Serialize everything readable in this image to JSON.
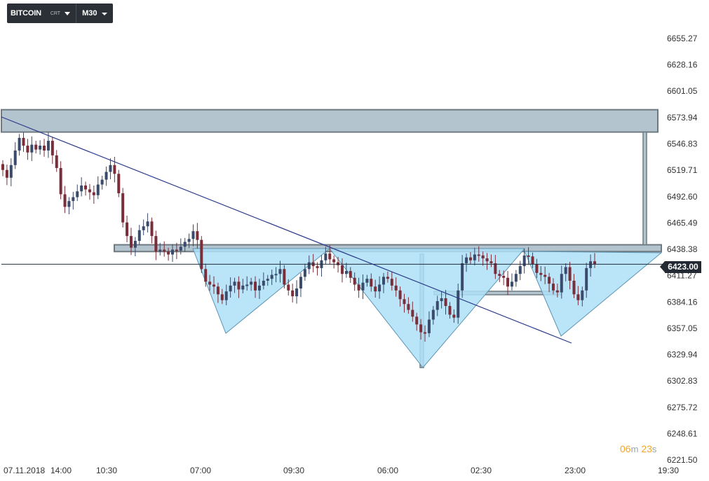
{
  "toolbar": {
    "symbol": "BITCOIN",
    "symbol_sub": "CRT",
    "timeframe": "M30"
  },
  "countdown": {
    "minutes": "06",
    "minutes_unit": "m",
    "seconds": "23",
    "seconds_unit": "s"
  },
  "colors": {
    "bull": "#3a4a6b",
    "bear": "#7a2e3a",
    "zone_fill": "#b4c4ce",
    "zone_stroke": "#6f7a80",
    "pattern_fill": "#aee0f7",
    "pattern_stroke": "#5d95b4",
    "trendline": "#2a3a8a",
    "price_label_bg": "#232a33"
  },
  "chart_data": {
    "type": "candlestick",
    "title": "",
    "xlabel": "",
    "ylabel": "",
    "ylim": [
      6221.5,
      6655.27
    ],
    "y_ticks": [
      "6655.27",
      "6628.16",
      "6601.05",
      "6573.94",
      "6546.83",
      "6519.71",
      "6492.60",
      "6465.49",
      "6438.38",
      "6411.27",
      "6384.16",
      "6357.05",
      "6329.94",
      "6302.83",
      "6275.72",
      "6248.61",
      "6221.50"
    ],
    "x_ticks": [
      "07.11.2018",
      "14:00",
      "10:30",
      "07:00",
      "09:30",
      "06:00",
      "02:30",
      "23:00",
      "19:30"
    ],
    "current_price": "6423.00",
    "horizontal_line": 6423.0,
    "close": [
      6520,
      6512,
      6525,
      6540,
      6553,
      6545,
      6538,
      6546,
      6541,
      6545,
      6540,
      6550,
      6535,
      6522,
      6495,
      6482,
      6488,
      6492,
      6498,
      6504,
      6500,
      6497,
      6494,
      6505,
      6510,
      6518,
      6525,
      6516,
      6496,
      6466,
      6452,
      6440,
      6447,
      6458,
      6462,
      6467,
      6452,
      6436,
      6438,
      6436,
      6433,
      6438,
      6437,
      6441,
      6446,
      6449,
      6457,
      6448,
      6418,
      6405,
      6402,
      6400,
      6392,
      6386,
      6395,
      6401,
      6405,
      6397,
      6401,
      6402,
      6405,
      6396,
      6401,
      6406,
      6408,
      6412,
      6413,
      6418,
      6402,
      6396,
      6390,
      6398,
      6410,
      6418,
      6425,
      6421,
      6419,
      6427,
      6434,
      6428,
      6425,
      6422,
      6413,
      6416,
      6409,
      6402,
      6396,
      6404,
      6408,
      6400,
      6395,
      6402,
      6410,
      6408,
      6401,
      6396,
      6387,
      6382,
      6376,
      6369,
      6361,
      6353,
      6352,
      6366,
      6376,
      6385,
      6388,
      6380,
      6371,
      6368,
      6396,
      6424,
      6430,
      6427,
      6433,
      6432,
      6429,
      6426,
      6424,
      6413,
      6411,
      6409,
      6400,
      6405,
      6413,
      6421,
      6432,
      6431,
      6423,
      6414,
      6412,
      6410,
      6403,
      6396,
      6394,
      6413,
      6420,
      6406,
      6392,
      6386,
      6396,
      6419,
      6426,
      6423
    ],
    "zones": [
      {
        "name": "resistance-zone",
        "from": 6559,
        "to": 6582
      },
      {
        "name": "neckline-zone",
        "from": 6436,
        "to": 6443
      }
    ],
    "patterns": [
      "left-shoulder",
      "head",
      "right-shoulder"
    ]
  }
}
